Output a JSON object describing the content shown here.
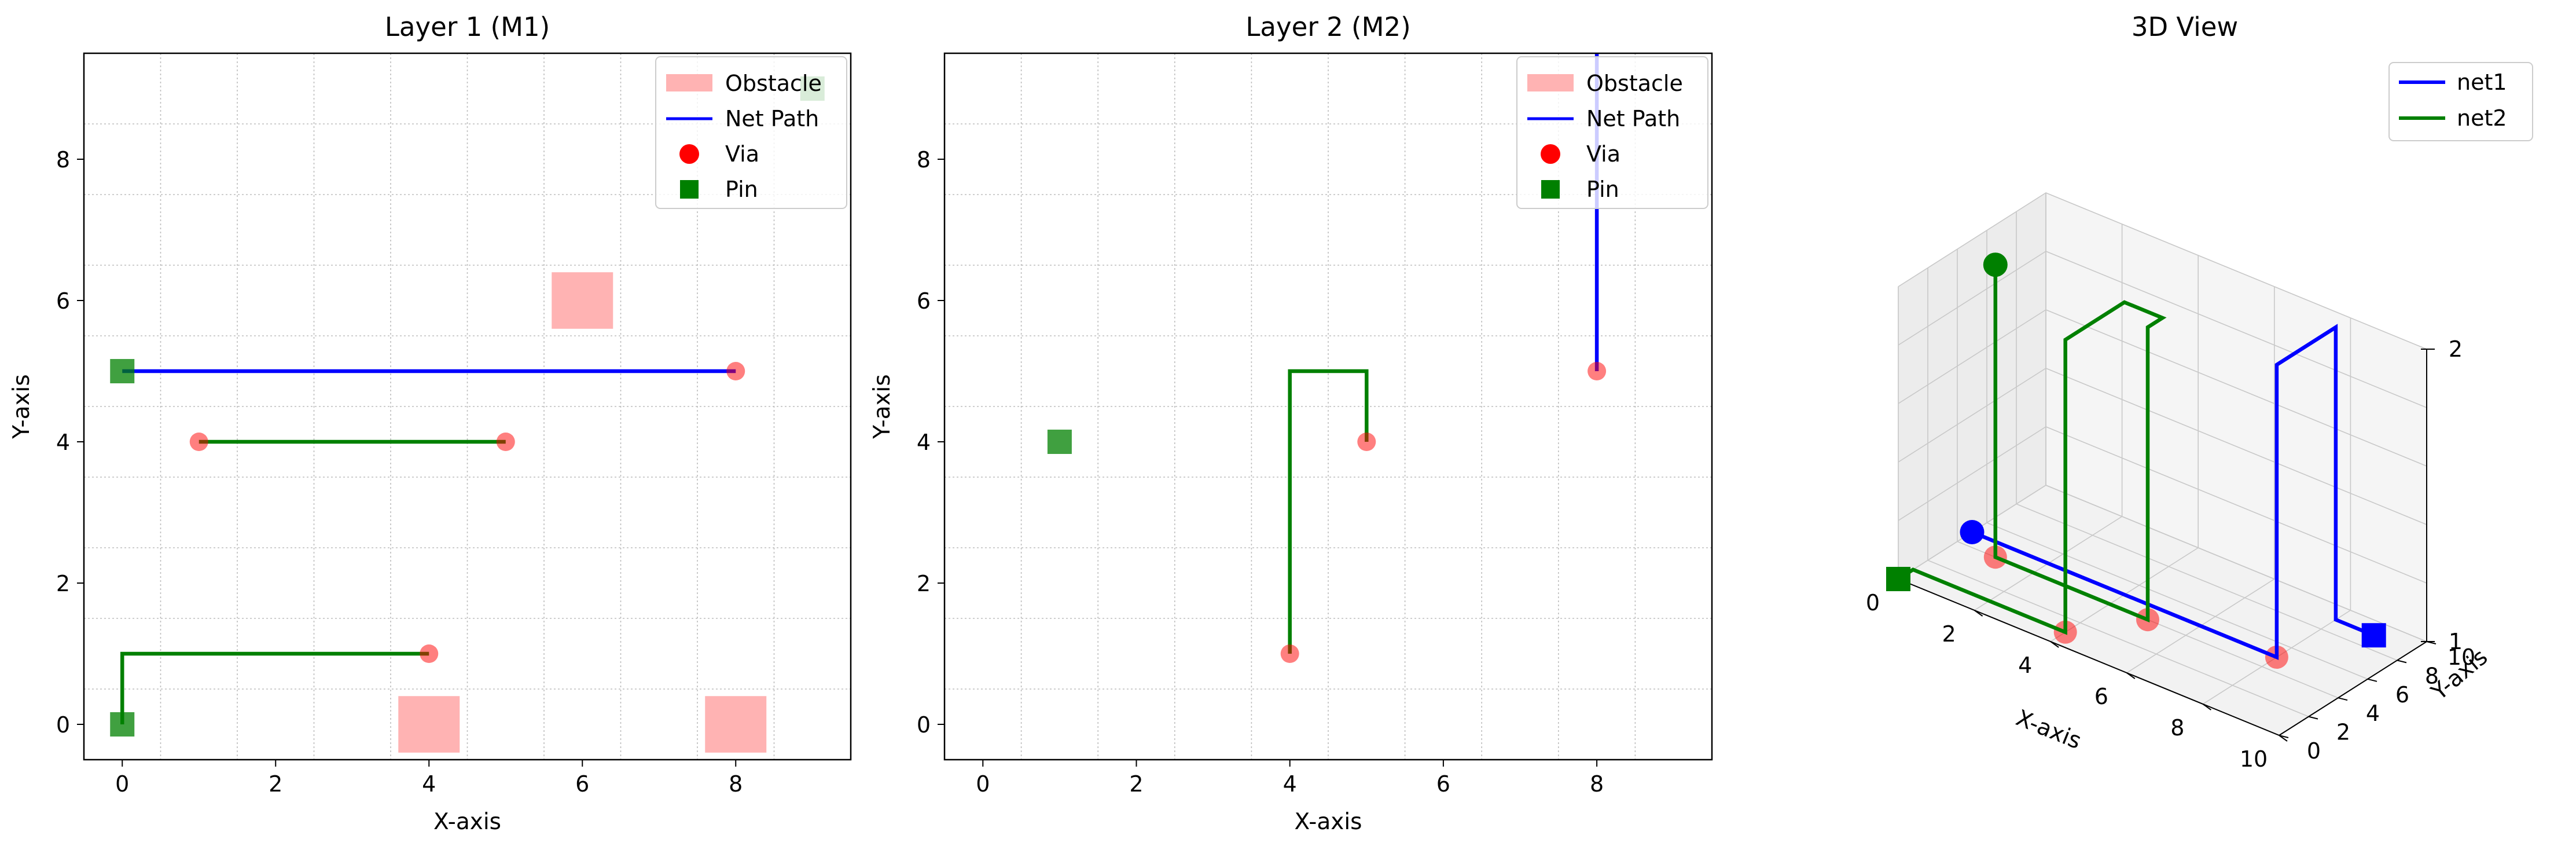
{
  "colors": {
    "net1": "#0000ff",
    "net2": "#008000",
    "via": "#ff0000",
    "obstacle": "#ffb3b3",
    "pin": "#008000",
    "grid": "#bdbdbd"
  },
  "chart_data": [
    {
      "type": "scatter",
      "title": "Layer 1 (M1)",
      "xlabel": "X-axis",
      "ylabel": "Y-axis",
      "xlim": [
        -0.5,
        9.5
      ],
      "ylim": [
        -0.5,
        9.5
      ],
      "xticks": [
        0,
        2,
        4,
        6,
        8
      ],
      "yticks": [
        0,
        2,
        4,
        6,
        8
      ],
      "grid": true,
      "legend_position": "top-right",
      "legend": [
        "Obstacle",
        "Net Path",
        "Via",
        "Pin"
      ],
      "obstacles": [
        [
          6,
          6
        ],
        [
          4,
          0
        ],
        [
          8,
          0
        ]
      ],
      "paths": [
        {
          "net": "net1",
          "points": [
            [
              0,
              5
            ],
            [
              8,
              5
            ]
          ]
        },
        {
          "net": "net2",
          "points": [
            [
              1,
              4
            ],
            [
              5,
              4
            ]
          ]
        },
        {
          "net": "net2",
          "points": [
            [
              0,
              0
            ],
            [
              0,
              1
            ],
            [
              4,
              1
            ]
          ]
        }
      ],
      "vias": [
        [
          8,
          5
        ],
        [
          1,
          4
        ],
        [
          5,
          4
        ],
        [
          4,
          1
        ]
      ],
      "pins": [
        [
          0,
          5
        ],
        [
          0,
          0
        ],
        [
          9,
          9
        ]
      ]
    },
    {
      "type": "scatter",
      "title": "Layer 2 (M2)",
      "xlabel": "X-axis",
      "ylabel": "Y-axis",
      "xlim": [
        -0.5,
        9.5
      ],
      "ylim": [
        -0.5,
        9.5
      ],
      "xticks": [
        0,
        2,
        4,
        6,
        8
      ],
      "yticks": [
        0,
        2,
        4,
        6,
        8
      ],
      "grid": true,
      "legend_position": "top-right",
      "legend": [
        "Obstacle",
        "Net Path",
        "Via",
        "Pin"
      ],
      "obstacles": [],
      "paths": [
        {
          "net": "net1",
          "points": [
            [
              8,
              5
            ],
            [
              8,
              9.5
            ]
          ]
        },
        {
          "net": "net2",
          "points": [
            [
              4,
              1
            ],
            [
              4,
              5
            ],
            [
              5,
              5
            ],
            [
              5,
              4
            ]
          ]
        }
      ],
      "vias": [
        [
          8,
          5
        ],
        [
          5,
          4
        ],
        [
          4,
          1
        ]
      ],
      "pins": [
        [
          1,
          4
        ]
      ]
    },
    {
      "type": "line",
      "title": "3D View",
      "xlabel": "X-axis",
      "ylabel": "Y-axis",
      "xlim": [
        0,
        10
      ],
      "ylim": [
        0,
        10
      ],
      "zlim": [
        1,
        2
      ],
      "xticks": [
        0,
        2,
        4,
        6,
        8,
        10
      ],
      "yticks": [
        0,
        2,
        4,
        6,
        8,
        10
      ],
      "zticks": [
        1,
        2
      ],
      "grid": true,
      "legend_position": "top-right",
      "series": [
        {
          "name": "net1",
          "points": [
            [
              0,
              5,
              1
            ],
            [
              8,
              5,
              1
            ],
            [
              8,
              5,
              2
            ],
            [
              8,
              9,
              2
            ],
            [
              8,
              9,
              1
            ],
            [
              9,
              9,
              1
            ]
          ]
        },
        {
          "name": "net2",
          "points": [
            [
              0,
              0,
              1
            ],
            [
              0,
              1,
              1
            ],
            [
              4,
              1,
              1
            ],
            [
              4,
              1,
              2
            ],
            [
              4,
              5,
              2
            ],
            [
              5,
              5,
              2
            ],
            [
              5,
              4,
              2
            ],
            [
              5,
              4,
              1
            ],
            [
              1,
              4,
              1
            ],
            [
              1,
              4,
              2
            ]
          ]
        }
      ],
      "vias": [
        [
          8,
          5,
          1
        ],
        [
          1,
          4,
          1
        ],
        [
          5,
          4,
          1
        ],
        [
          4,
          1,
          1
        ]
      ],
      "end_markers": [
        {
          "net": "net1",
          "shape": "circle",
          "point": [
            0,
            5,
            1
          ]
        },
        {
          "net": "net1",
          "shape": "square",
          "point": [
            9,
            9,
            1
          ]
        },
        {
          "net": "net2",
          "shape": "circle",
          "point": [
            1,
            4,
            2
          ]
        },
        {
          "net": "net2",
          "shape": "square",
          "point": [
            0,
            0,
            1
          ]
        }
      ]
    }
  ]
}
